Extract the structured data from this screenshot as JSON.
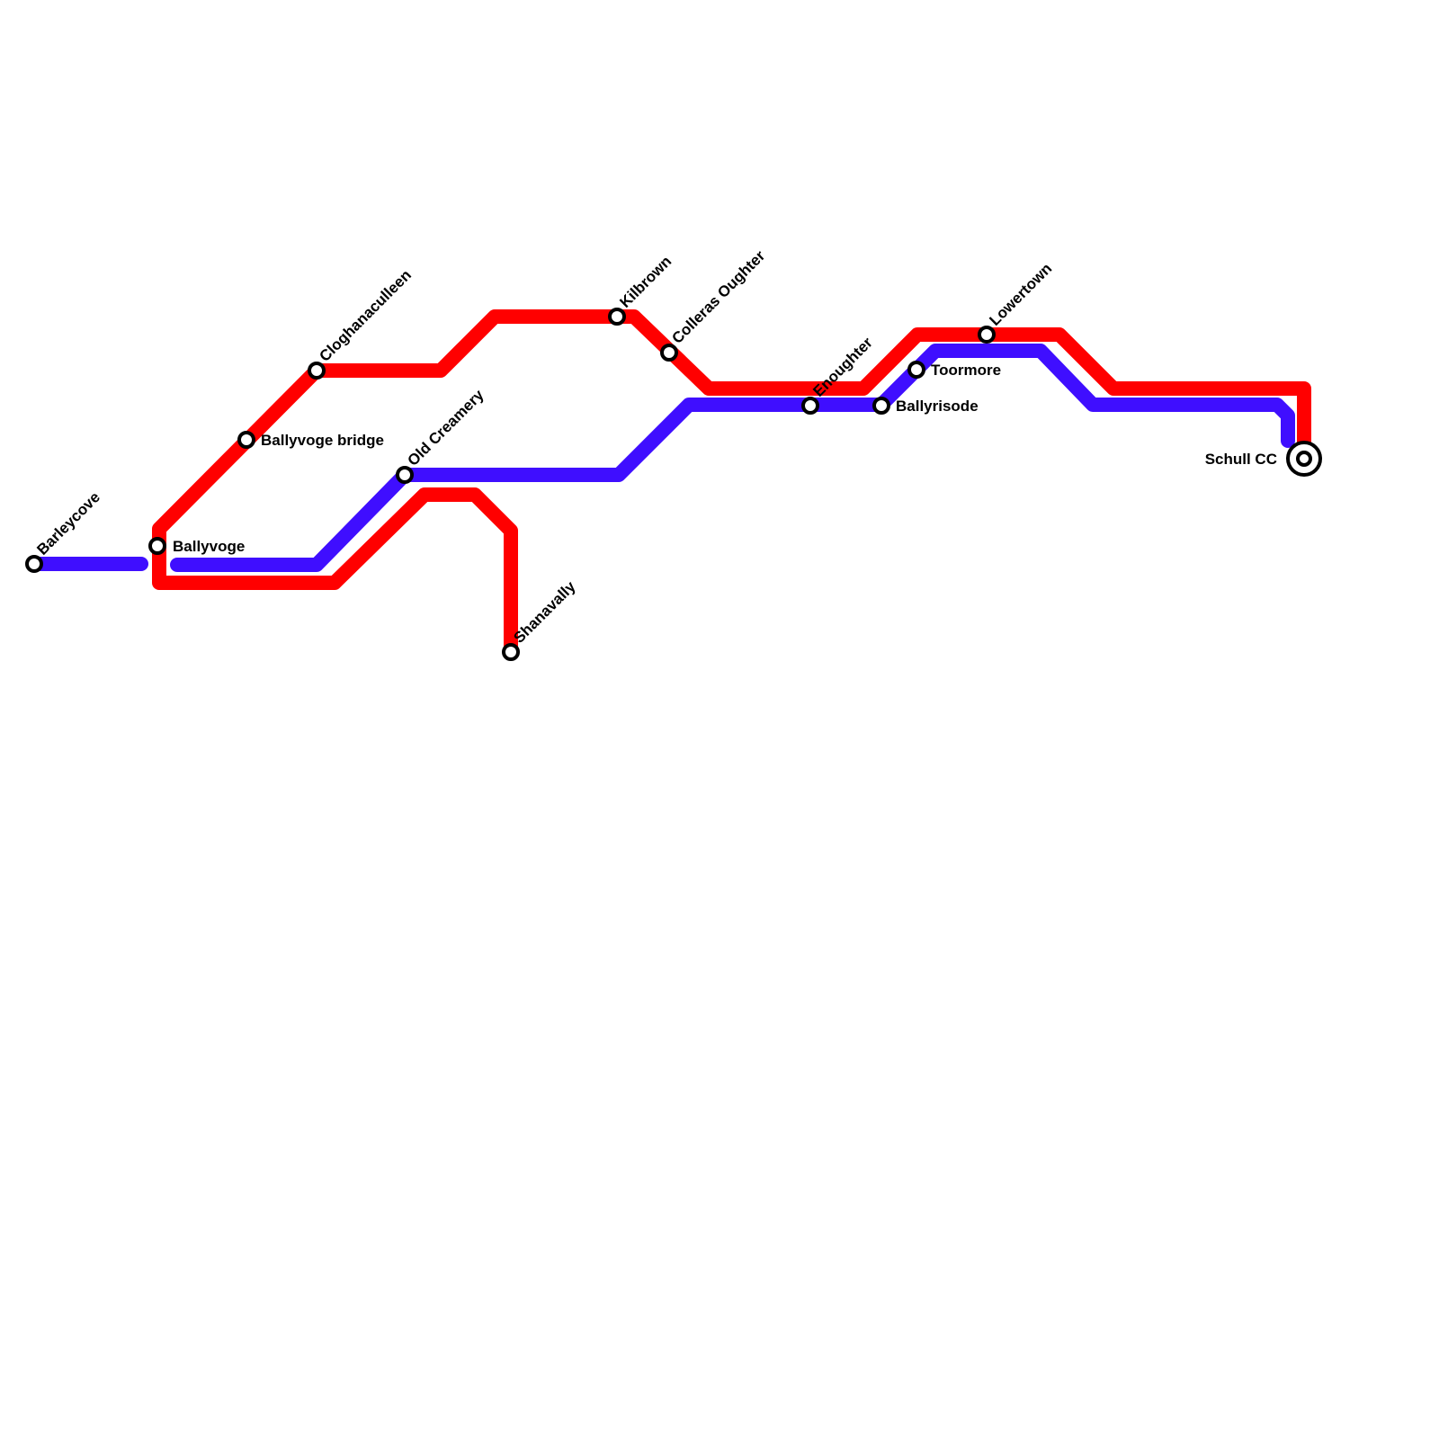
{
  "stations": [
    {
      "name": "Barleycove"
    },
    {
      "name": "Ballyvoge"
    },
    {
      "name": "Ballyvoge bridge"
    },
    {
      "name": "Cloghanaculleen"
    },
    {
      "name": "Old Creamery"
    },
    {
      "name": "Shanavally"
    },
    {
      "name": "Kilbrown"
    },
    {
      "name": "Colleras Oughter"
    },
    {
      "name": "Enoughter"
    },
    {
      "name": "Ballyrisode"
    },
    {
      "name": "Toormore"
    },
    {
      "name": "Lowertown"
    },
    {
      "name": "Schull CC"
    }
  ]
}
